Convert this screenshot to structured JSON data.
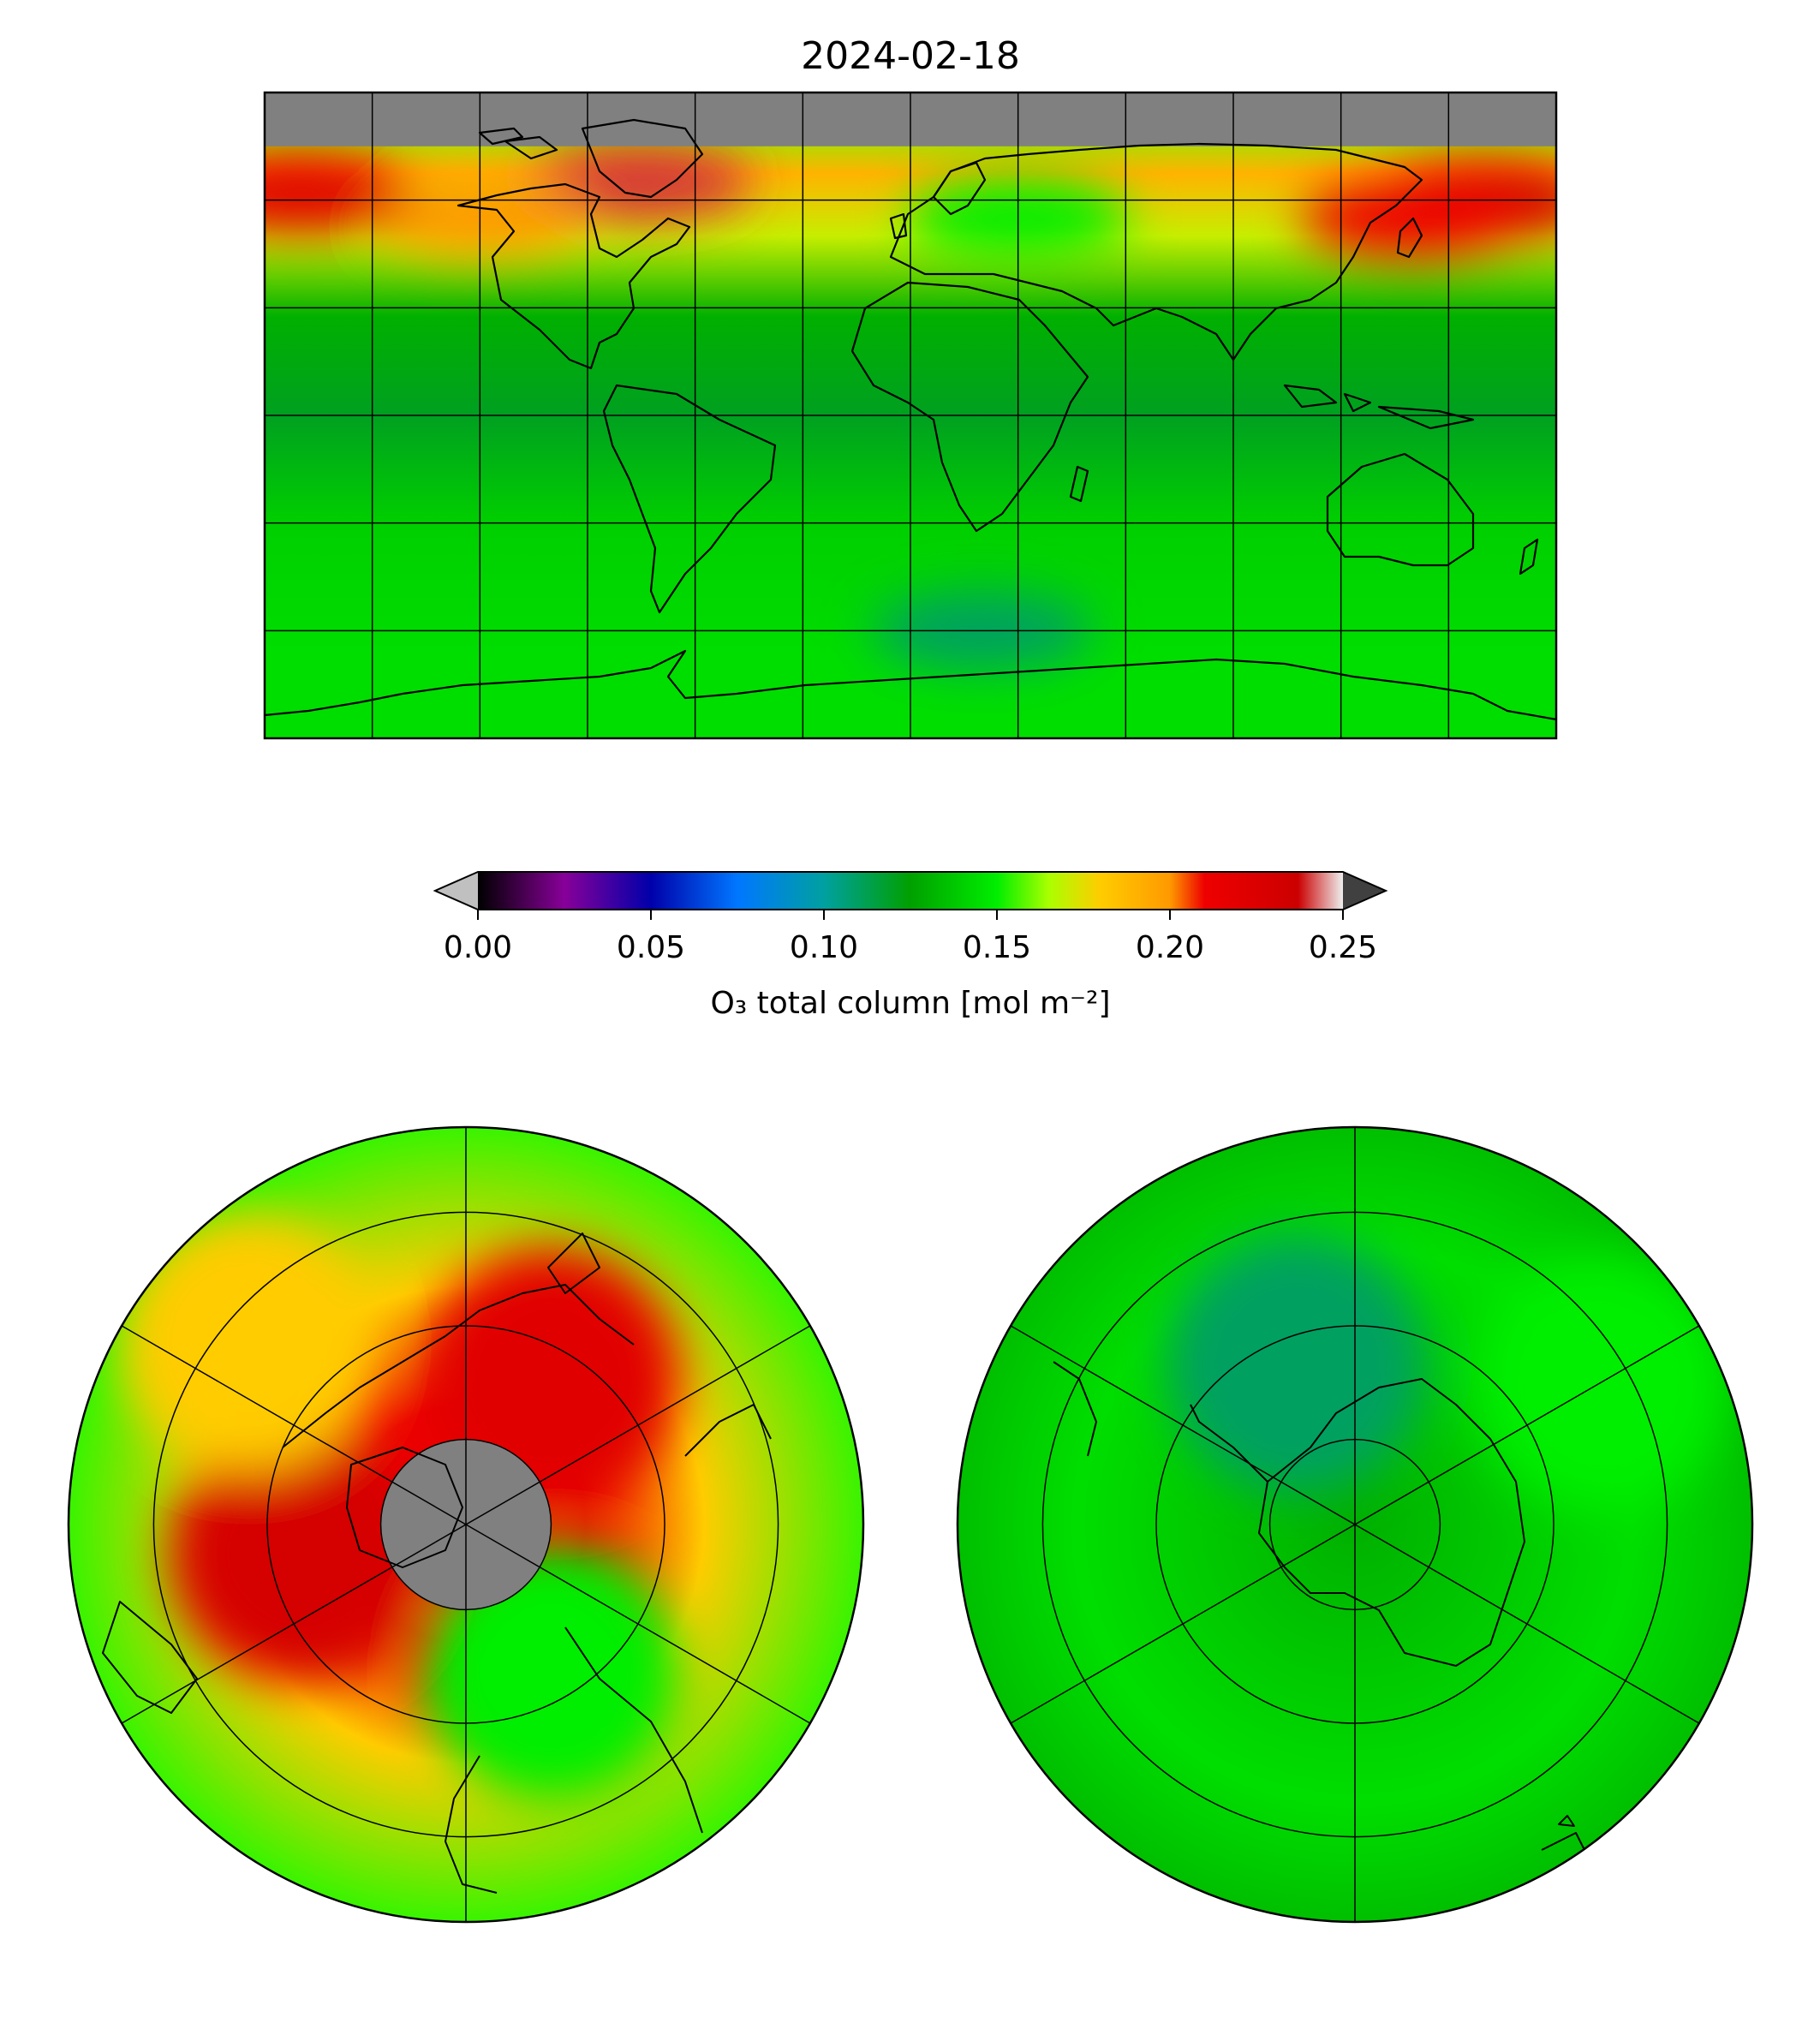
{
  "figure": {
    "title": "2024-02-18"
  },
  "colorbar": {
    "label": "O₃ total column [mol m⁻²]",
    "ticks": [
      0.0,
      0.05,
      0.1,
      0.15,
      0.2,
      0.25
    ],
    "tick_labels": [
      "0.00",
      "0.05",
      "0.10",
      "0.15",
      "0.20",
      "0.25"
    ],
    "vmin": 0.0,
    "vmax": 0.25,
    "extend": "both",
    "under_color": "#c0c0c0",
    "over_color": "#404040",
    "colormap_stops": [
      {
        "v": 0.0,
        "color": "#000000"
      },
      {
        "v": 0.025,
        "color": "#880099"
      },
      {
        "v": 0.05,
        "color": "#0000aa"
      },
      {
        "v": 0.075,
        "color": "#0077ff"
      },
      {
        "v": 0.1,
        "color": "#00a0a0"
      },
      {
        "v": 0.125,
        "color": "#00a000"
      },
      {
        "v": 0.15,
        "color": "#00ee00"
      },
      {
        "v": 0.165,
        "color": "#aaff00"
      },
      {
        "v": 0.18,
        "color": "#ffcc00"
      },
      {
        "v": 0.2,
        "color": "#ff9900"
      },
      {
        "v": 0.21,
        "color": "#ee0000"
      },
      {
        "v": 0.237,
        "color": "#cc0000"
      },
      {
        "v": 0.25,
        "color": "#eeeeee"
      }
    ]
  },
  "maps": {
    "missing_color": "#808080",
    "coastline_color": "#000000"
  },
  "chart_data": [
    {
      "type": "heatmap",
      "panel": "global equirectangular map",
      "title": "2024-02-18",
      "xlim": [
        -180,
        180
      ],
      "ylim": [
        -90,
        90
      ],
      "gridlines": {
        "lon_step": 30,
        "lat_step": 30
      },
      "bands": [
        {
          "lat_range": [
            75,
            90
          ],
          "o3": null
        },
        {
          "lat_range": [
            60,
            75
          ],
          "o3": 0.19
        },
        {
          "lat_range": [
            40,
            60
          ],
          "o3": 0.17
        },
        {
          "lat_range": [
            15,
            40
          ],
          "o3": 0.13
        },
        {
          "lat_range": [
            -15,
            15
          ],
          "o3": 0.12
        },
        {
          "lat_range": [
            -45,
            -15
          ],
          "o3": 0.14
        },
        {
          "lat_range": [
            -90,
            -45
          ],
          "o3": 0.145
        }
      ],
      "features": [
        {
          "lon": -75,
          "lat": 65,
          "o3": 0.24
        },
        {
          "lon": -120,
          "lat": 55,
          "o3": 0.2
        },
        {
          "lon": -170,
          "lat": 62,
          "o3": 0.22
        },
        {
          "lon": 160,
          "lat": 60,
          "o3": 0.23
        },
        {
          "lon": 140,
          "lat": 55,
          "o3": 0.21
        },
        {
          "lon": 30,
          "lat": 55,
          "o3": 0.15
        },
        {
          "lon": 20,
          "lat": -60,
          "o3": 0.11
        }
      ]
    },
    {
      "type": "heatmap",
      "panel": "north polar stereographic",
      "lat_range": [
        90,
        20
      ],
      "no_data_poleward_of": 75,
      "features": [
        {
          "lon": -80,
          "lat": 60,
          "o3": 0.23
        },
        {
          "lon": 150,
          "lat": 60,
          "o3": 0.22
        },
        {
          "lon": 30,
          "lat": 60,
          "o3": 0.15
        },
        {
          "lon": -130,
          "lat": 40,
          "o3": 0.18
        }
      ]
    },
    {
      "type": "heatmap",
      "panel": "south polar stereographic",
      "lat_range": [
        -90,
        -20
      ],
      "typical_o3": 0.135,
      "features": [
        {
          "lon": 20,
          "lat": -60,
          "o3": 0.11
        },
        {
          "lon": -60,
          "lat": -40,
          "o3": 0.15
        }
      ]
    }
  ]
}
